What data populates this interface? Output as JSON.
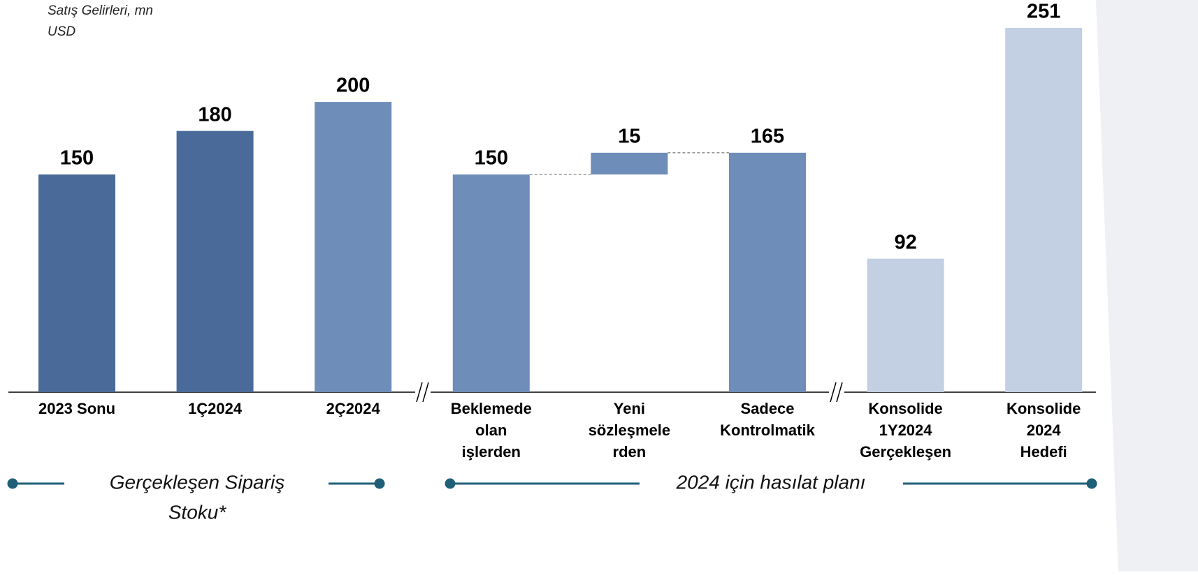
{
  "chart_data": {
    "type": "bar",
    "subtitle": [
      "Satış Gelirleri, mn",
      "USD"
    ],
    "categories": [
      [
        "2023 Sonu"
      ],
      [
        "1Ç2024"
      ],
      [
        "2Ç2024"
      ],
      [
        "Beklemede",
        "olan",
        "işlerden"
      ],
      [
        "Yeni",
        "sözleşmele",
        "rden"
      ],
      [
        "Sadece",
        "Kontrolmatik"
      ],
      [
        "Konsolide",
        "1Y2024",
        "Gerçekleşen"
      ],
      [
        "Konsolide",
        "2024",
        "Hedefi"
      ]
    ],
    "values": [
      150,
      180,
      200,
      150,
      15,
      165,
      92,
      251
    ],
    "colors": [
      "#4a6b9a",
      "#4a6b9a",
      "#6e8db9",
      "#6e8db9",
      "#6e8db9",
      "#6e8db9",
      "#c3cfe2",
      "#c3cfe2"
    ],
    "stacked_on_previous": [
      false,
      false,
      false,
      false,
      true,
      false,
      false,
      false
    ],
    "groups": [
      {
        "label": [
          "Gerçekleşen Sipariş",
          "Stoku*"
        ]
      },
      {
        "label": [
          "2024 için hasılat planı"
        ]
      }
    ]
  }
}
